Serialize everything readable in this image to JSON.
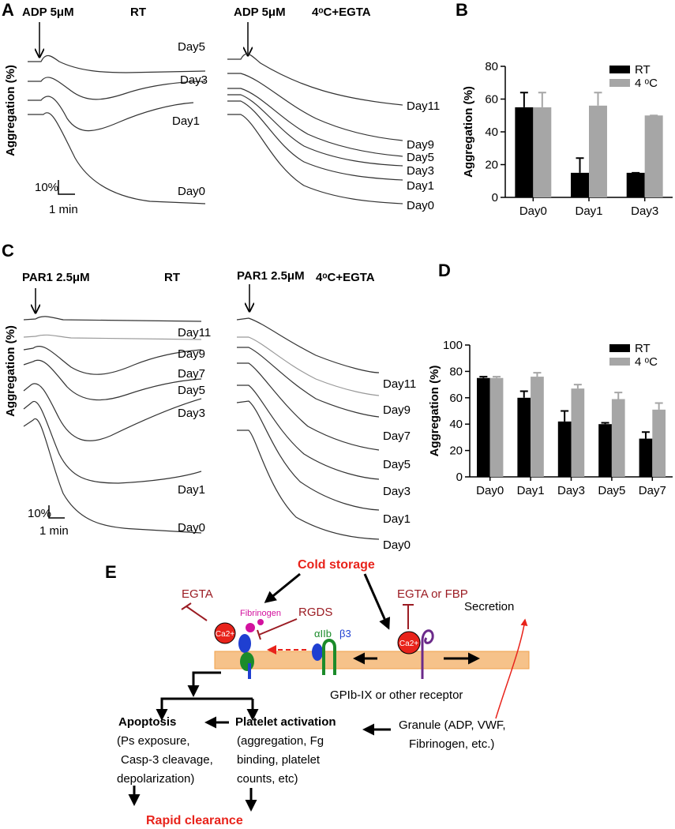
{
  "figure": {
    "labels": [
      "A",
      "B",
      "C",
      "D",
      "E"
    ]
  },
  "panel_a": {
    "agonist": "ADP 5μM",
    "left_condition": "RT",
    "right_condition": "4ᵒC+EGTA",
    "ylabel": "Aggregation (%)",
    "left_days": [
      "Day5",
      "Day3",
      "Day1",
      "Day0"
    ],
    "right_days": [
      "Day11",
      "Day9",
      "Day5",
      "Day3",
      "Day1",
      "Day0"
    ],
    "scale_y": "10%",
    "scale_x": "1 min"
  },
  "panel_c": {
    "agonist": "PAR1 2.5μM",
    "left_condition": "RT",
    "right_condition": "4ᵒC+EGTA",
    "ylabel": "Aggregation (%)",
    "left_days": [
      "Day11",
      "Day9",
      "Day7",
      "Day5",
      "Day3",
      "Day1",
      "Day0"
    ],
    "right_days": [
      "Day11",
      "Day9",
      "Day7",
      "Day5",
      "Day3",
      "Day1",
      "Day0"
    ],
    "scale_y": "10%",
    "scale_x": "1 min"
  },
  "panel_e": {
    "cold_storage": "Cold storage",
    "egta": "EGTA",
    "fibrinogen": "Fibrinogen",
    "rgds": "RGDS",
    "egta_fbp": "EGTA or FBP",
    "secretion": "Secretion",
    "ca": [
      "Ca2+",
      "Ca2+"
    ],
    "integrin_alpha": "αIIb",
    "integrin_beta": "β3",
    "receptor": "GPIb-IX or other receptor",
    "apoptosis": "Apoptosis",
    "apoptosis_details": [
      "(Ps exposure,",
      "Casp-3 cleavage,",
      "depolarization)"
    ],
    "activation": "Platelet activation",
    "activation_details": [
      "(aggregation, Fg",
      "binding, platelet",
      "counts, etc)"
    ],
    "granule": [
      "Granule (ADP, VWF,",
      "Fibrinogen, etc.)"
    ],
    "clearance": "Rapid clearance"
  },
  "chart_data": [
    {
      "type": "bar",
      "ylabel": "Aggregation (%)",
      "categories": [
        "Day0",
        "Day1",
        "Day3"
      ],
      "series": [
        {
          "name": "RT",
          "color": "#000000",
          "values": [
            55,
            15,
            15
          ],
          "errors": [
            9,
            9,
            0
          ]
        },
        {
          "name": "4 ᵒC",
          "color": "#a6a6a6",
          "values": [
            55,
            56,
            50
          ],
          "errors": [
            9,
            8,
            0
          ]
        }
      ],
      "ylim": [
        0,
        80
      ],
      "yticks": [
        0,
        20,
        40,
        60,
        80
      ],
      "legend": "upper right"
    },
    {
      "type": "bar",
      "ylabel": "Aggregation (%)",
      "categories": [
        "Day0",
        "Day1",
        "Day3",
        "Day5",
        "Day7"
      ],
      "series": [
        {
          "name": "RT",
          "color": "#000000",
          "values": [
            75,
            60,
            42,
            40,
            29
          ],
          "errors": [
            1,
            5,
            8,
            1,
            5
          ]
        },
        {
          "name": "4 ᵒC",
          "color": "#a6a6a6",
          "values": [
            75,
            76,
            67,
            59,
            51
          ],
          "errors": [
            1,
            3,
            3,
            5,
            5
          ]
        }
      ],
      "ylim": [
        0,
        100
      ],
      "yticks": [
        0,
        20,
        40,
        60,
        80,
        100
      ],
      "legend": "upper right"
    }
  ]
}
